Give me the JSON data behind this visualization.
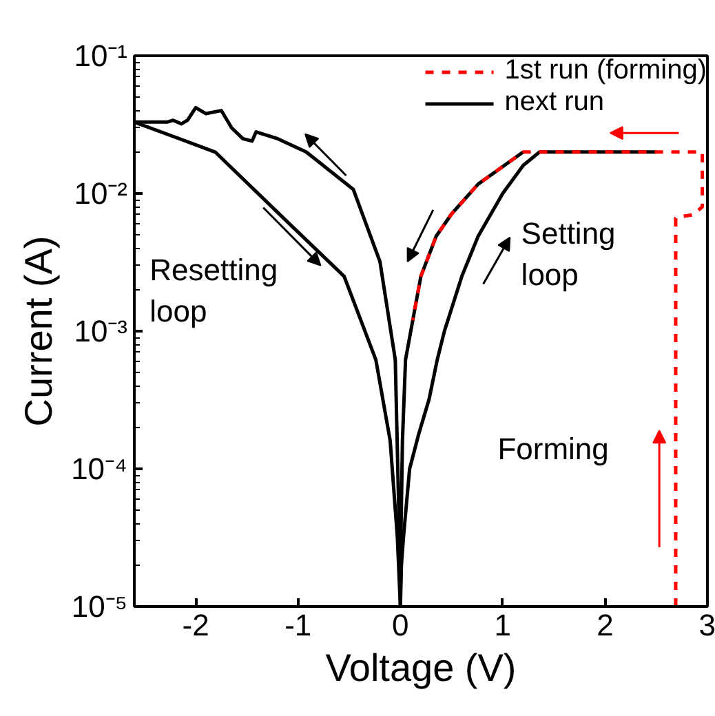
{
  "chart_data": {
    "type": "line",
    "xlabel": "Voltage (V)",
    "ylabel": "Current (A)",
    "log": "y",
    "xlim": [
      -2.6,
      3
    ],
    "ylim": [
      1e-05,
      0.1
    ],
    "xticks": [
      -2,
      -1,
      0,
      1,
      2,
      3
    ],
    "yticks": [
      {
        "value": 1e-05,
        "label": "10⁻⁵"
      },
      {
        "value": 0.0001,
        "label": "10⁻⁴"
      },
      {
        "value": 0.001,
        "label": "10⁻³"
      },
      {
        "value": 0.01,
        "label": "10⁻²"
      },
      {
        "value": 0.1,
        "label": "10⁻¹"
      }
    ],
    "grid": false,
    "legend": "top right",
    "marker": "none",
    "series": [
      {
        "name": "1st run (forming)",
        "color": "#ff0000",
        "line_style": "dashed",
        "x": [
          2.69,
          2.69,
          2.75,
          2.86,
          2.95,
          2.95,
          1.2,
          0.76,
          0.5,
          0.35,
          0.2,
          0.12
        ],
        "values": [
          1e-05,
          0.0066,
          0.0068,
          0.007,
          0.008,
          0.02,
          0.02,
          0.0117,
          0.0071,
          0.0049,
          0.0025,
          0.0012
        ]
      },
      {
        "name": "next run",
        "color": "#000000",
        "line_style": "solid",
        "x": [
          0.0,
          0.01,
          0.03,
          0.09,
          0.18,
          0.28,
          0.36,
          0.43,
          0.6,
          0.76,
          1.0,
          1.2,
          1.36,
          2.5
        ],
        "values": [
          1e-05,
          2e-05,
          3.2e-05,
          0.0001,
          0.00018,
          0.00032,
          0.00062,
          0.001,
          0.0025,
          0.0049,
          0.01,
          0.016,
          0.02,
          0.02
        ]
      },
      {
        "color": "#000000",
        "line_style": "solid",
        "x": [
          1.2,
          0.76,
          0.5,
          0.35,
          0.2,
          0.05,
          0.02,
          0.005,
          0.0,
          -0.01,
          -0.05,
          -0.2,
          -0.46,
          -0.92,
          -1.2,
          -1.41,
          -1.45,
          -1.54,
          -1.65,
          -1.75,
          -1.9,
          -2.0,
          -2.08,
          -2.14,
          -2.22,
          -2.28,
          -2.6
        ],
        "values": [
          0.02,
          0.0117,
          0.0071,
          0.0049,
          0.0025,
          0.00062,
          0.00016,
          3.2e-05,
          1e-05,
          3.2e-05,
          0.00062,
          0.0032,
          0.0107,
          0.02,
          0.025,
          0.028,
          0.024,
          0.025,
          0.03,
          0.04,
          0.038,
          0.042,
          0.034,
          0.032,
          0.034,
          0.033,
          0.033
        ]
      },
      {
        "color": "#000000",
        "line_style": "solid",
        "x": [
          -2.6,
          -1.81,
          -1.14,
          -0.55,
          -0.24,
          -0.1,
          -0.03,
          0.0
        ],
        "values": [
          0.033,
          0.02,
          0.0066,
          0.0025,
          0.00062,
          0.00016,
          3.2e-05,
          1e-05
        ]
      }
    ],
    "annotations": [
      "Resetting\nloop",
      "Setting\nloop",
      "Forming"
    ]
  }
}
